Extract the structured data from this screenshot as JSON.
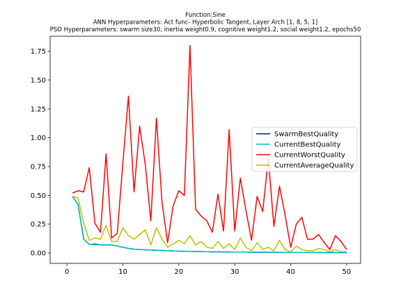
{
  "chart_data": {
    "type": "line",
    "title_lines": [
      "Function:Sine",
      "ANN Hyperparameters: Act func- Hyperbolic Tangent, Layer Arch [1, 8, 5, 1]",
      "PSO Hyperparameters: swarm size30, inertia weight0.9, cognitive weight1.2, social weight1.2, epochs50"
    ],
    "xlabel": "",
    "ylabel": "",
    "xlim": [
      -3.0,
      52.5
    ],
    "ylim": [
      -0.09,
      1.88
    ],
    "xticks": [
      0,
      10,
      20,
      30,
      40,
      50
    ],
    "yticks": [
      0.0,
      0.25,
      0.5,
      0.75,
      1.0,
      1.25,
      1.5,
      1.75
    ],
    "ytick_labels": [
      "0.00",
      "0.25",
      "0.50",
      "0.75",
      "1.00",
      "1.25",
      "1.50",
      "1.75"
    ],
    "x": [
      1,
      2,
      3,
      4,
      5,
      6,
      7,
      8,
      9,
      10,
      11,
      12,
      13,
      14,
      15,
      16,
      17,
      18,
      19,
      20,
      21,
      22,
      23,
      24,
      25,
      26,
      27,
      28,
      29,
      30,
      31,
      32,
      33,
      34,
      35,
      36,
      37,
      38,
      39,
      40,
      41,
      42,
      43,
      44,
      45,
      46,
      47,
      48,
      49,
      50
    ],
    "legend_position": "center-right",
    "series": [
      {
        "name": "SwarmBestQuality",
        "color": "#0000ff",
        "values": [
          0.49,
          0.42,
          0.12,
          0.075,
          0.075,
          0.07,
          0.07,
          0.07,
          0.06,
          0.05,
          0.04,
          0.033,
          0.03,
          0.028,
          0.026,
          0.024,
          0.022,
          0.02,
          0.018,
          0.016,
          0.015,
          0.014,
          0.013,
          0.012,
          0.011,
          0.01,
          0.01,
          0.009,
          0.009,
          0.008,
          0.008,
          0.008,
          0.007,
          0.007,
          0.007,
          0.006,
          0.006,
          0.006,
          0.005,
          0.005,
          0.005,
          0.005,
          0.005,
          0.005,
          0.004,
          0.004,
          0.004,
          0.004,
          0.004,
          0.004
        ]
      },
      {
        "name": "CurrentBestQuality",
        "color": "#00bfbf",
        "values": [
          0.49,
          0.42,
          0.12,
          0.075,
          0.08,
          0.07,
          0.07,
          0.07,
          0.06,
          0.05,
          0.04,
          0.033,
          0.03,
          0.028,
          0.026,
          0.024,
          0.022,
          0.02,
          0.018,
          0.016,
          0.015,
          0.014,
          0.013,
          0.012,
          0.011,
          0.01,
          0.01,
          0.009,
          0.009,
          0.008,
          0.008,
          0.008,
          0.007,
          0.007,
          0.007,
          0.006,
          0.006,
          0.006,
          0.005,
          0.005,
          0.005,
          0.005,
          0.005,
          0.005,
          0.004,
          0.004,
          0.004,
          0.004,
          0.004,
          0.004
        ]
      },
      {
        "name": "CurrentWorstQuality",
        "color": "#ff0000",
        "values": [
          0.52,
          0.54,
          0.53,
          0.74,
          0.26,
          0.18,
          0.86,
          0.13,
          0.17,
          0.78,
          1.36,
          0.53,
          1.1,
          0.77,
          0.28,
          1.17,
          0.44,
          0.09,
          0.41,
          0.54,
          0.5,
          1.8,
          0.38,
          0.32,
          0.28,
          0.18,
          0.51,
          0.19,
          1.07,
          0.19,
          0.65,
          0.37,
          0.11,
          0.49,
          0.36,
          0.82,
          0.23,
          0.58,
          0.33,
          0.05,
          0.25,
          0.31,
          0.12,
          0.12,
          0.16,
          0.09,
          0.03,
          0.15,
          0.1,
          0.03
        ]
      },
      {
        "name": "CurrentAverageQuality",
        "color": "#bfbf00",
        "values": [
          0.49,
          0.48,
          0.26,
          0.11,
          0.13,
          0.12,
          0.24,
          0.1,
          0.1,
          0.22,
          0.15,
          0.12,
          0.16,
          0.2,
          0.07,
          0.22,
          0.12,
          0.05,
          0.08,
          0.11,
          0.08,
          0.15,
          0.07,
          0.1,
          0.05,
          0.04,
          0.1,
          0.04,
          0.08,
          0.03,
          0.13,
          0.05,
          0.02,
          0.09,
          0.03,
          0.05,
          0.02,
          0.11,
          0.03,
          0.01,
          0.06,
          0.03,
          0.02,
          0.02,
          0.04,
          0.03,
          0.01,
          0.03,
          0.01,
          0.01
        ]
      }
    ]
  }
}
